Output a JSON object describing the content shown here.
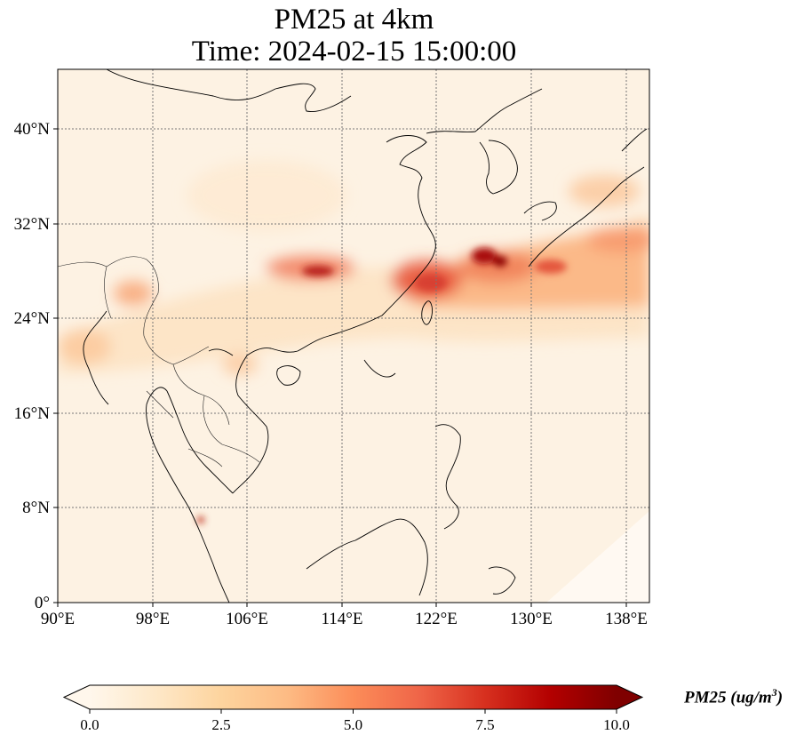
{
  "title": {
    "line1": "PM25 at 4km",
    "line2": "Time: 2024-02-15 15:00:00"
  },
  "map": {
    "lon_range": [
      90,
      140
    ],
    "lat_range": [
      0,
      44
    ],
    "x_ticks": [
      "90°E",
      "98°E",
      "106°E",
      "114°E",
      "122°E",
      "130°E",
      "138°E"
    ],
    "y_ticks": [
      "0°",
      "8°N",
      "16°N",
      "24°N",
      "32°N",
      "40°N"
    ],
    "gridlines": true
  },
  "colorbar": {
    "colormap": "OrRd",
    "ticks": [
      "0.0",
      "2.5",
      "5.0",
      "7.5",
      "10.0"
    ],
    "range": [
      0,
      10
    ],
    "extend": "both",
    "label_main": "PM25 (ug/m",
    "label_exp": "3",
    "label_close": ")"
  },
  "colors": {
    "low": "#fff7ec",
    "mid": "#fc8d59",
    "high": "#7f0000"
  }
}
